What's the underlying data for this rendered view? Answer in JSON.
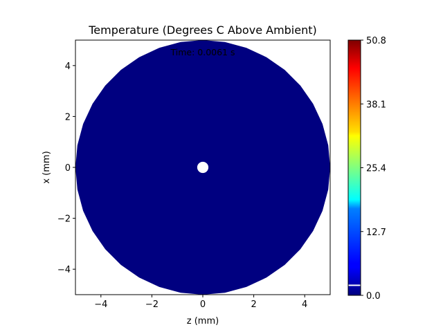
{
  "chart_data": {
    "type": "heatmap",
    "title": "Temperature (Degrees C Above Ambient)",
    "xlabel": "z (mm)",
    "ylabel": "x (mm)",
    "annotation": "Time: 0.0061 s",
    "xlim": [
      -5,
      5
    ],
    "ylim": [
      -5,
      5
    ],
    "x_ticks": [
      -4,
      -2,
      0,
      2,
      4
    ],
    "x_tick_labels": [
      "−4",
      "−2",
      "0",
      "2",
      "4"
    ],
    "y_ticks": [
      -4,
      -2,
      0,
      2,
      4
    ],
    "y_tick_labels": [
      "−4",
      "−2",
      "0",
      "2",
      "4"
    ],
    "domain": {
      "shape": "disk",
      "center": [
        0,
        0
      ],
      "outer_radius_mm": 5,
      "inner_hole_radius_mm": 0.22,
      "value": 0.0,
      "fill_color": "#000080"
    },
    "colorbar": {
      "colormap": "jet",
      "min": 0.0,
      "max": 50.8,
      "ticks": [
        0.0,
        12.7,
        25.4,
        38.1,
        50.8
      ],
      "tick_labels": [
        "0.0",
        "12.7",
        "25.4",
        "38.1",
        "50.8"
      ],
      "marker_value": 2.0,
      "marker_color": "#ffffff"
    },
    "grid": false
  }
}
